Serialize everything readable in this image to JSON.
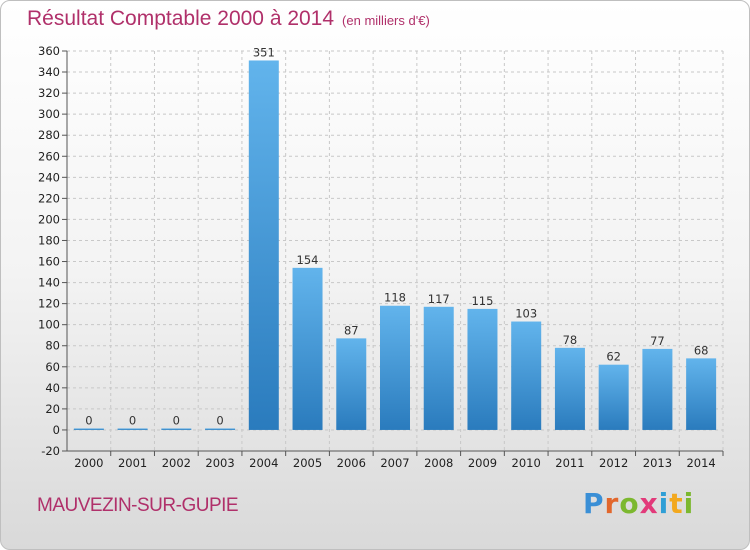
{
  "header": {
    "title": "Résultat Comptable 2000 à 2014",
    "unit": "(en milliers d'€)"
  },
  "footer": {
    "commune": "MAUVEZIN-SUR-GUPIE",
    "logo_letters": [
      "P",
      "r",
      "o",
      "x",
      "i",
      "t",
      "i"
    ],
    "logo_colors": [
      "#3a8fd6",
      "#e2672c",
      "#7cb82f",
      "#e23a7a",
      "#2f9fd6",
      "#f2a81e",
      "#7cb82f"
    ]
  },
  "colors": {
    "bar_light": "#62b4ec",
    "bar_dark": "#2a7bbd",
    "grid": "#c8c8c8",
    "accent": "#b0306a"
  },
  "chart_data": {
    "type": "bar",
    "categories": [
      "2000",
      "2001",
      "2002",
      "2003",
      "2004",
      "2005",
      "2006",
      "2007",
      "2008",
      "2009",
      "2010",
      "2011",
      "2012",
      "2013",
      "2014"
    ],
    "values": [
      0,
      0,
      0,
      0,
      351,
      154,
      87,
      118,
      117,
      115,
      103,
      78,
      62,
      77,
      68
    ],
    "data_labels": [
      "0",
      "0",
      "0",
      "0",
      "351",
      "154",
      "87",
      "118",
      "117",
      "115",
      "103",
      "78",
      "62",
      "77",
      "68"
    ],
    "y_ticks": [
      -20,
      0,
      20,
      40,
      60,
      80,
      100,
      120,
      140,
      160,
      180,
      200,
      220,
      240,
      260,
      280,
      300,
      320,
      340,
      360
    ],
    "ylim": [
      -20,
      360
    ],
    "grid": true,
    "title": "Résultat Comptable 2000 à 2014",
    "xlabel": "",
    "ylabel": ""
  }
}
